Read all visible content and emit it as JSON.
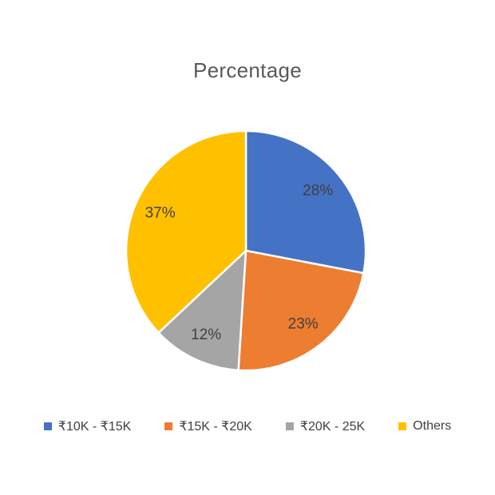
{
  "chart_data": {
    "type": "pie",
    "title": "Percentage",
    "categories": [
      "₹10K - ₹15K",
      "₹15K - ₹20K",
      "₹20K - 25K",
      "Others"
    ],
    "values": [
      28,
      23,
      12,
      37
    ],
    "data_labels": [
      "28%",
      "23%",
      "12%",
      "37%"
    ],
    "colors": [
      "#4472C4",
      "#ED7D31",
      "#A5A5A5",
      "#FFC000"
    ],
    "start_angle_deg": 0,
    "direction": "clockwise",
    "legend_position": "bottom",
    "title_color": "#595959",
    "data_label_color": "#404040",
    "slice_border_color": "#FFFFFF"
  },
  "legend": {
    "items": [
      {
        "label": "₹10K - ₹15K",
        "color": "#4472C4"
      },
      {
        "label": "₹15K - ₹20K",
        "color": "#ED7D31"
      },
      {
        "label": "₹20K - 25K",
        "color": "#A5A5A5"
      },
      {
        "label": "Others",
        "color": "#FFC000"
      }
    ]
  }
}
